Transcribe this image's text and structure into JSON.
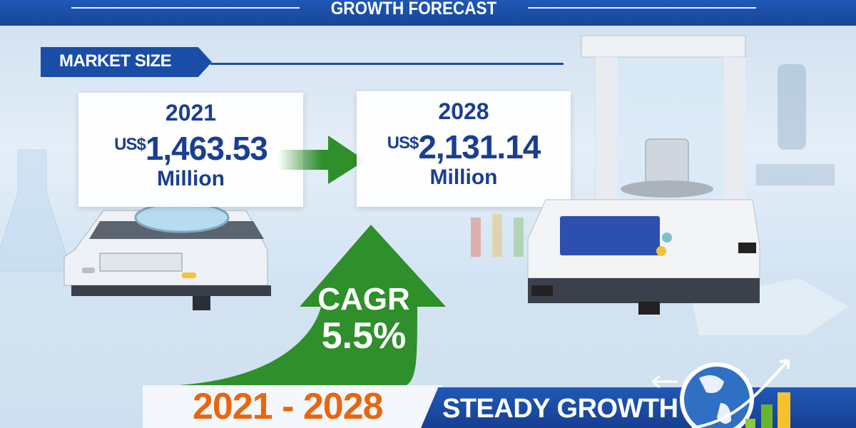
{
  "header": {
    "title": "GROWTH FORECAST"
  },
  "section": {
    "label": "MARKET SIZE"
  },
  "start": {
    "year": "2021",
    "currency": "US$",
    "value": "1,463.53",
    "unit": "Million"
  },
  "end": {
    "year": "2028",
    "currency": "US$",
    "value": "2,131.14",
    "unit": "Million"
  },
  "cagr": {
    "label": "CAGR",
    "value": "5.5%"
  },
  "period": "2021 - 2028",
  "footer": {
    "label": "STEADY GROWTH"
  },
  "colors": {
    "brand_blue": "#1a4ea6",
    "growth_green": "#2f8f2a",
    "period_orange": "#e8660f"
  },
  "icons": [
    "balance-scale",
    "analytical-balance",
    "globe",
    "bar-chart",
    "growth-arrow"
  ]
}
